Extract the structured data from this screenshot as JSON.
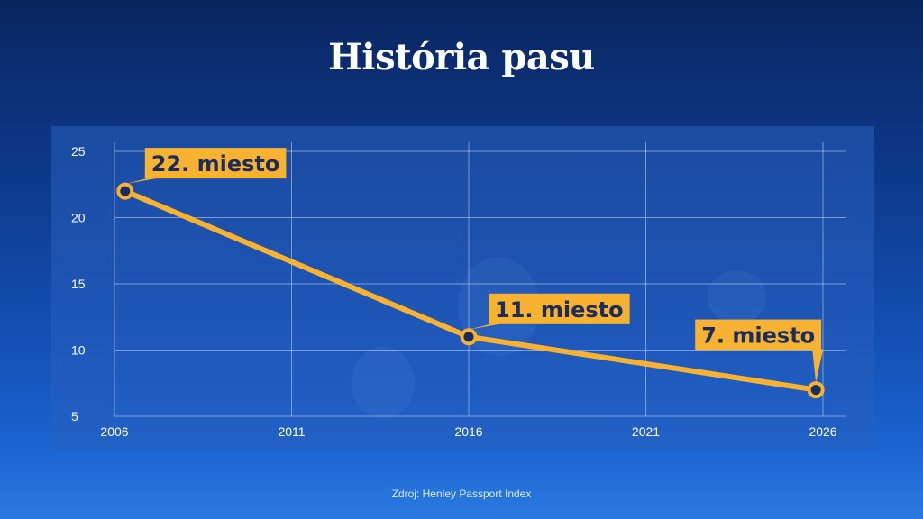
{
  "title": "História pasu",
  "source": "Zdroj: Henley Passport Index",
  "colors": {
    "line": "#f7b232",
    "callout_bg": "#f7b232",
    "callout_text": "#1b2d5e",
    "grid": "#c8d8f0",
    "axis_text": "#ffffff"
  },
  "chart_data": {
    "type": "line",
    "title": "",
    "xlabel": "",
    "ylabel": "",
    "xlim": [
      2006,
      2026
    ],
    "ylim": [
      5,
      25
    ],
    "x_ticks": [
      "2006",
      "2011",
      "2016",
      "2021",
      "2026"
    ],
    "y_ticks": [
      "5",
      "10",
      "15",
      "20",
      "25"
    ],
    "grid": true,
    "series": [
      {
        "x": [
          2006.3,
          2016,
          2025.8
        ],
        "y": [
          22,
          11,
          7
        ]
      }
    ],
    "annotations": [
      {
        "x": 2006.3,
        "y": 22,
        "text": "22. miesto",
        "position": "upper-right"
      },
      {
        "x": 2016,
        "y": 11,
        "text": "11. miesto",
        "position": "upper-right"
      },
      {
        "x": 2025.8,
        "y": 7,
        "text": "7. miesto",
        "position": "upper-left"
      }
    ]
  }
}
